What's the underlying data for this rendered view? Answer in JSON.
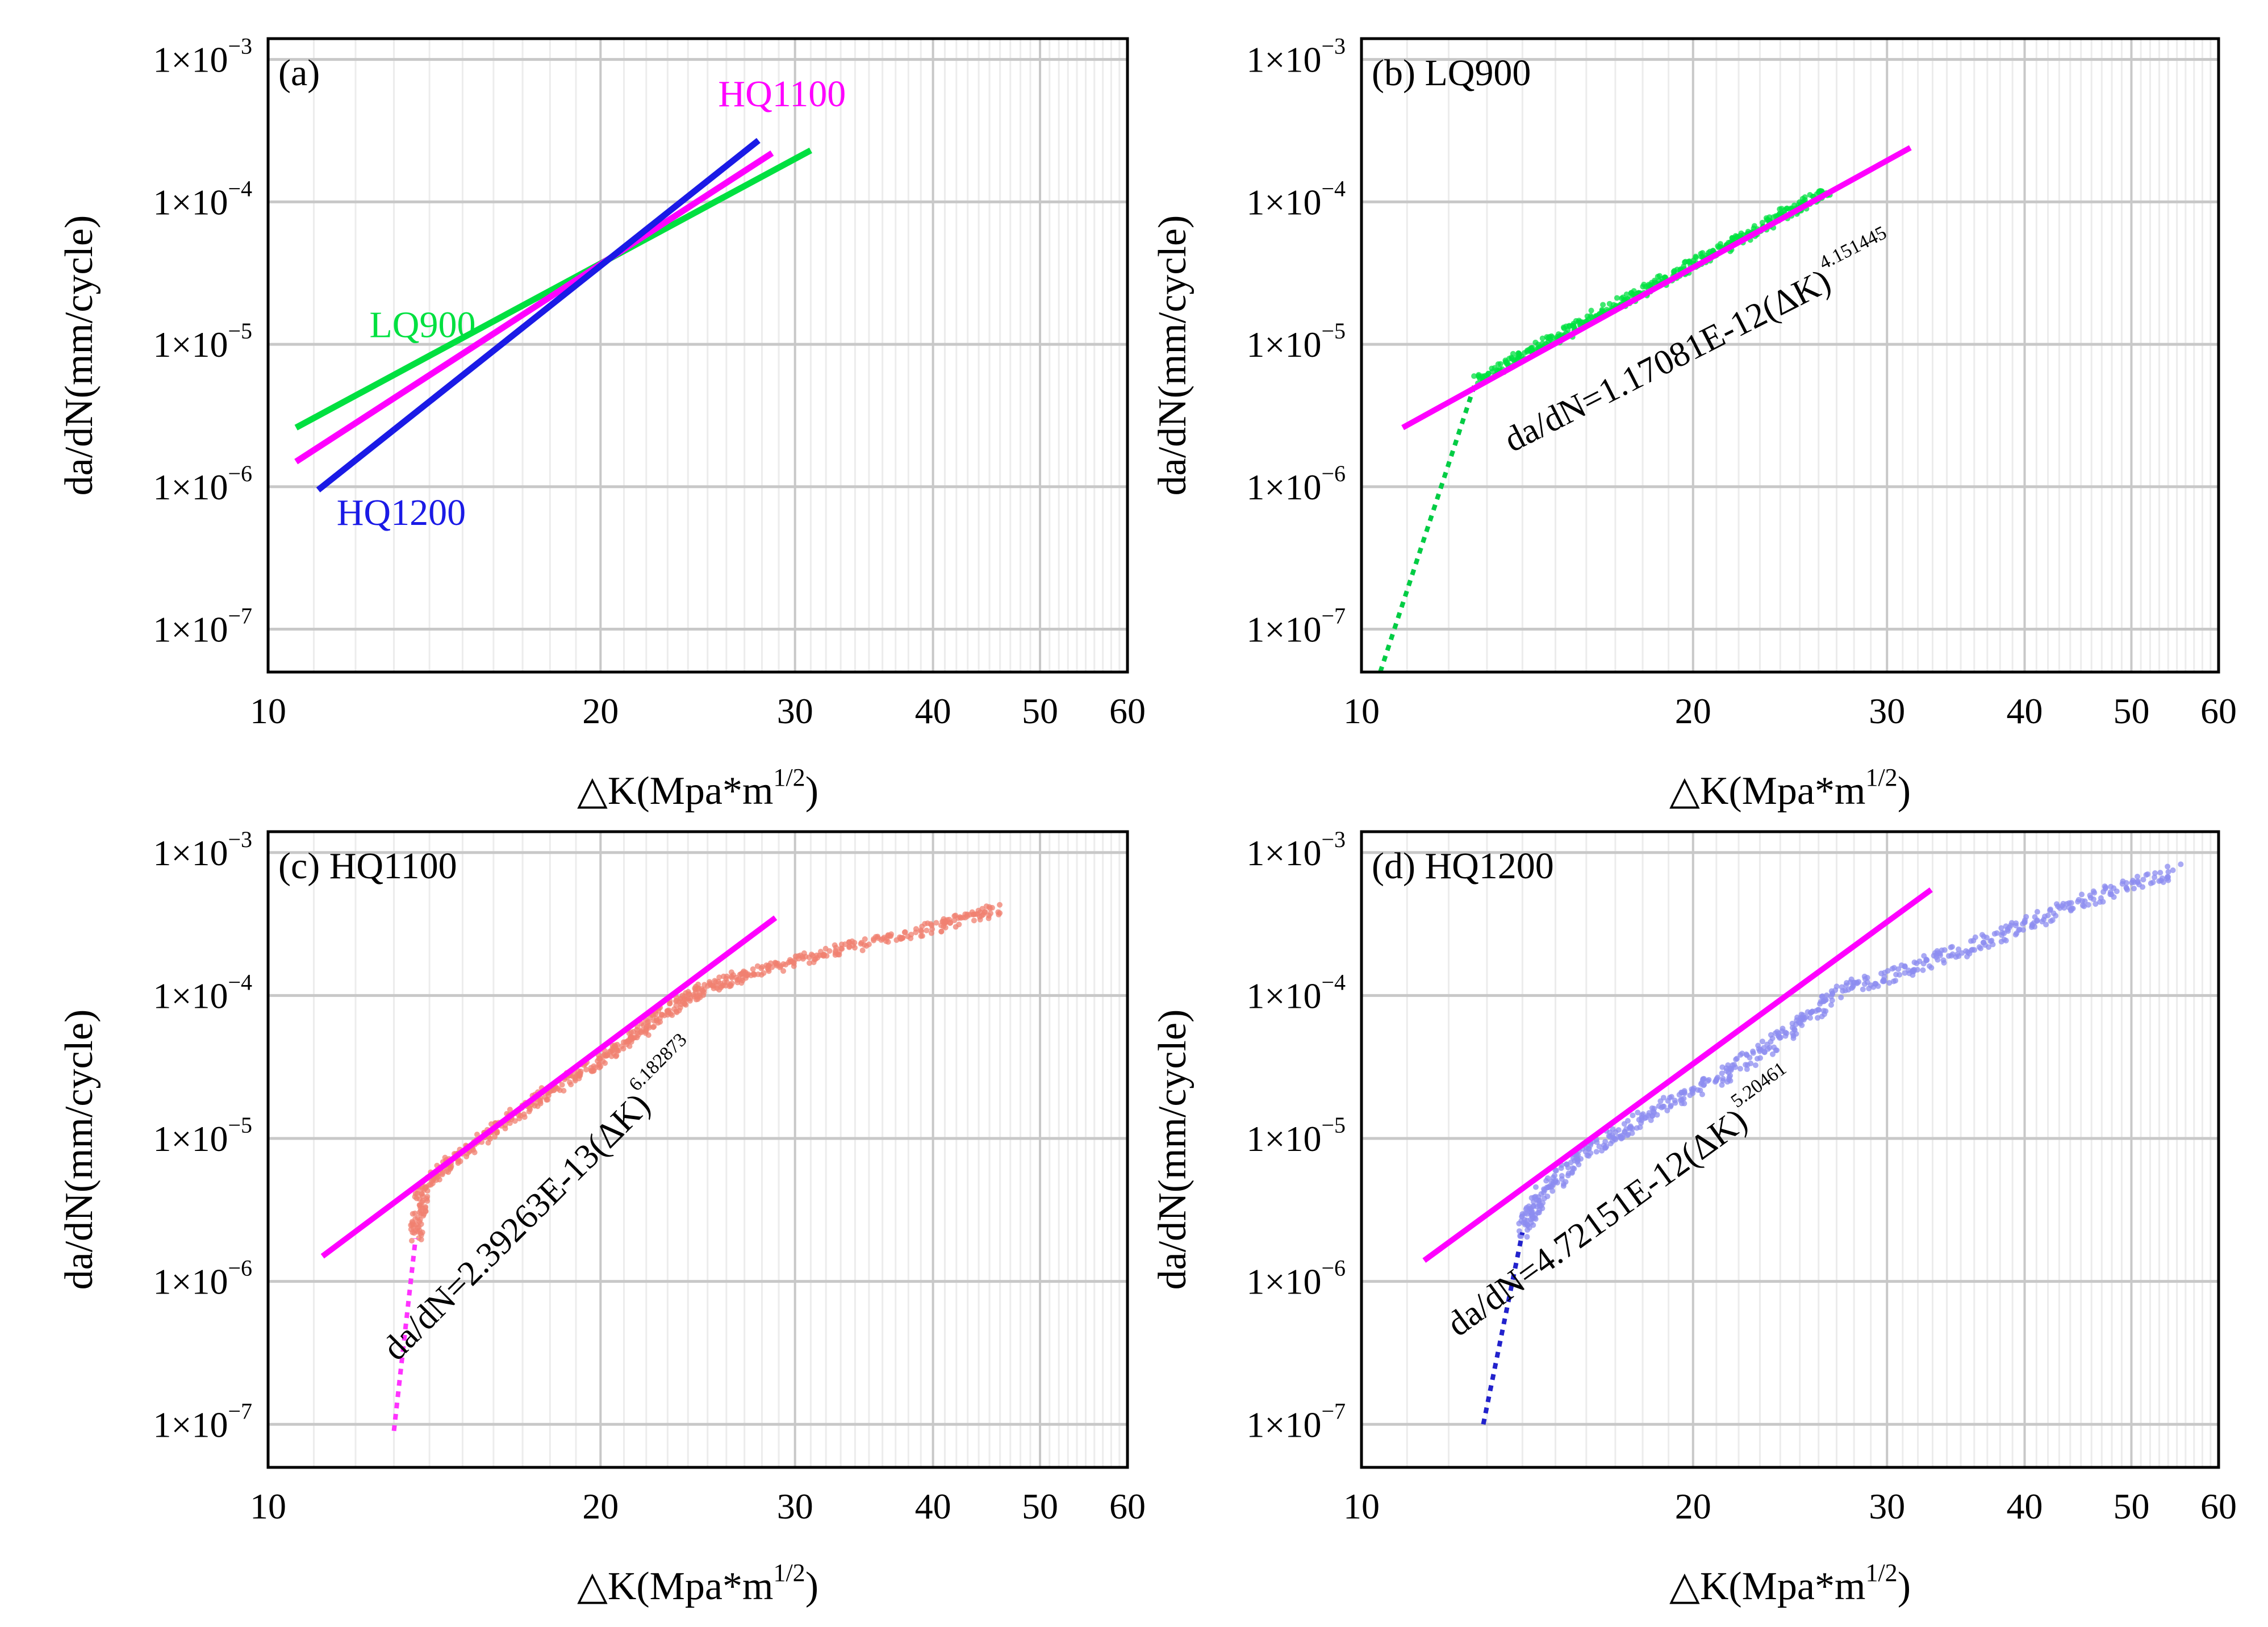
{
  "colors": {
    "green": "#00e040",
    "magenta": "#ff00ff",
    "blue": "#1a1ae6",
    "salmon": "#f08070",
    "lightblue": "#8c8cf0",
    "dottedgreen": "#00cc44",
    "dottedmagenta": "#ff33ff",
    "dottedblue": "#2222cc",
    "grid_major": "#c8c8c8",
    "grid_minor": "#ececec",
    "frame": "#000000"
  },
  "chart_data": [
    {
      "type": "line",
      "panel_label": "(a)",
      "xlabel": "△K(Mpa*m¹′²)",
      "xlabel_base": "△K(Mpa*m",
      "xlabel_sup": "1/2",
      "xlabel_close": ")",
      "ylabel": "da/dN(mm/cycle)",
      "xscale": "log",
      "yscale": "log",
      "xlim": [
        10,
        60
      ],
      "ylim": [
        5e-08,
        0.0014
      ],
      "xticks": [
        10,
        20,
        30,
        40,
        50,
        60
      ],
      "yticks": [
        {
          "value": 0.001,
          "base": "1×10",
          "exp": "−3"
        },
        {
          "value": 0.0001,
          "base": "1×10",
          "exp": "−4"
        },
        {
          "value": 1e-05,
          "base": "1×10",
          "exp": "−5"
        },
        {
          "value": 1e-06,
          "base": "1×10",
          "exp": "−6"
        },
        {
          "value": 1e-07,
          "base": "1×10",
          "exp": "−7"
        }
      ],
      "series": [
        {
          "name": "LQ900",
          "color_key": "green",
          "style": "solid",
          "x": [
            10.6,
            31.0
          ],
          "y": [
            2.6e-06,
            0.00023
          ]
        },
        {
          "name": "HQ1100",
          "color_key": "magenta",
          "style": "solid",
          "x": [
            10.6,
            28.6
          ],
          "y": [
            1.5e-06,
            0.00022
          ]
        },
        {
          "name": "HQ1200",
          "color_key": "blue",
          "style": "solid",
          "x": [
            11.1,
            27.8
          ],
          "y": [
            9.5e-07,
            0.00027
          ]
        }
      ],
      "annotations": [
        {
          "text": "LQ900",
          "color_key": "green",
          "x": 13.8,
          "y": 1.12e-05
        },
        {
          "text": "HQ1100",
          "color_key": "magenta",
          "x": 29.2,
          "y": 0.00047
        },
        {
          "text": "HQ1200",
          "color_key": "blue",
          "x": 13.2,
          "y": 5.4e-07
        }
      ]
    },
    {
      "type": "scatter",
      "panel_label": "(b) LQ900",
      "xlabel": "△K(Mpa*m¹′²)",
      "xlabel_base": "△K(Mpa*m",
      "xlabel_sup": "1/2",
      "xlabel_close": ")",
      "ylabel": "da/dN(mm/cycle)",
      "xscale": "log",
      "yscale": "log",
      "xlim": [
        10,
        60
      ],
      "ylim": [
        5e-08,
        0.0014
      ],
      "xticks": [
        10,
        20,
        30,
        40,
        50,
        60
      ],
      "yticks": [
        {
          "value": 0.001,
          "base": "1×10",
          "exp": "−3"
        },
        {
          "value": 0.0001,
          "base": "1×10",
          "exp": "−4"
        },
        {
          "value": 1e-05,
          "base": "1×10",
          "exp": "−5"
        },
        {
          "value": 1e-06,
          "base": "1×10",
          "exp": "−6"
        },
        {
          "value": 1e-07,
          "base": "1×10",
          "exp": "−7"
        }
      ],
      "fit": {
        "color_key": "magenta",
        "x": [
          10.9,
          31.5
        ],
        "y": [
          2.6e-06,
          0.00024
        ]
      },
      "threshold": {
        "color_key": "dottedgreen",
        "x": [
          10.4,
          12.7
        ],
        "y": [
          5e-08,
          5.5e-06
        ]
      },
      "scatter": {
        "color_key": "green",
        "x_range": [
          12.7,
          26.5
        ],
        "y_start": 5.5e-06,
        "y_end": 0.00012,
        "scatter_spread": 0.035
      },
      "equation": {
        "main": "da/dN=1.17081E-12(ΔK)",
        "exp": "4.151445",
        "x": 20.5,
        "y": 8.5e-06,
        "angle": -27
      }
    },
    {
      "type": "scatter",
      "panel_label": "(c) HQ1100",
      "xlabel": "△K(Mpa*m¹′²)",
      "xlabel_base": "△K(Mpa*m",
      "xlabel_sup": "1/2",
      "xlabel_close": ")",
      "ylabel": "da/dN(mm/cycle)",
      "xscale": "log",
      "yscale": "log",
      "xlim": [
        10,
        60
      ],
      "ylim": [
        5e-08,
        0.0014
      ],
      "xticks": [
        10,
        20,
        30,
        40,
        50,
        60
      ],
      "yticks": [
        {
          "value": 0.001,
          "base": "1×10",
          "exp": "−3"
        },
        {
          "value": 0.0001,
          "base": "1×10",
          "exp": "−4"
        },
        {
          "value": 1e-05,
          "base": "1×10",
          "exp": "−5"
        },
        {
          "value": 1e-06,
          "base": "1×10",
          "exp": "−6"
        },
        {
          "value": 1e-07,
          "base": "1×10",
          "exp": "−7"
        }
      ],
      "fit": {
        "color_key": "magenta",
        "x": [
          11.2,
          28.8
        ],
        "y": [
          1.5e-06,
          0.00035
        ]
      },
      "threshold": {
        "color_key": "dottedmagenta",
        "x": [
          13.0,
          13.6
        ],
        "y": [
          9e-08,
          2e-06
        ]
      },
      "scatter": {
        "color_key": "salmon",
        "points": [
          [
            13.6,
            2e-06
          ],
          [
            13.8,
            4.5e-06
          ],
          [
            15,
            8e-06
          ],
          [
            17,
            1.6e-05
          ],
          [
            19,
            2.8e-05
          ],
          [
            21,
            4.6e-05
          ],
          [
            23,
            8e-05
          ],
          [
            25,
            0.000115
          ],
          [
            28,
            0.00015
          ],
          [
            33,
            0.00021
          ],
          [
            40,
            0.0003
          ],
          [
            46,
            0.0004
          ]
        ],
        "scatter_spread": 0.04
      },
      "equation": {
        "main": "da/dN=2.39263E-13(ΔK)",
        "exp": "6.182873",
        "x": 18.0,
        "y": 3.2e-06,
        "angle": -45
      }
    },
    {
      "type": "scatter",
      "panel_label": "(d) HQ1200",
      "xlabel": "△K(Mpa*m¹′²)",
      "xlabel_base": "△K(Mpa*m",
      "xlabel_sup": "1/2",
      "xlabel_close": ")",
      "ylabel": "da/dN(mm/cycle)",
      "xscale": "log",
      "yscale": "log",
      "xlim": [
        10,
        60
      ],
      "ylim": [
        5e-08,
        0.0014
      ],
      "xticks": [
        10,
        20,
        30,
        40,
        50,
        60
      ],
      "yticks": [
        {
          "value": 0.001,
          "base": "1×10",
          "exp": "−3"
        },
        {
          "value": 0.0001,
          "base": "1×10",
          "exp": "−4"
        },
        {
          "value": 1e-05,
          "base": "1×10",
          "exp": "−5"
        },
        {
          "value": 1e-06,
          "base": "1×10",
          "exp": "−6"
        },
        {
          "value": 1e-07,
          "base": "1×10",
          "exp": "−7"
        }
      ],
      "fit": {
        "color_key": "magenta",
        "x": [
          11.4,
          32.9
        ],
        "y": [
          1.4e-06,
          0.00055
        ]
      },
      "threshold": {
        "color_key": "dottedblue",
        "x": [
          12.9,
          14.0
        ],
        "y": [
          1e-07,
          2.2e-06
        ]
      },
      "scatter": {
        "color_key": "lightblue",
        "points": [
          [
            14.0,
            2.2e-06
          ],
          [
            14.5,
            4e-06
          ],
          [
            16,
            8e-06
          ],
          [
            18,
            1.4e-05
          ],
          [
            21,
            2.6e-05
          ],
          [
            24,
            5e-05
          ],
          [
            27,
            0.000105
          ],
          [
            32,
            0.00016
          ],
          [
            38,
            0.00026
          ],
          [
            45,
            0.00045
          ],
          [
            55,
            0.00075
          ]
        ],
        "scatter_spread": 0.05
      },
      "equation": {
        "main": "da/dN=4.72151E-12(ΔK)",
        "exp": "5.20461",
        "x": 17.5,
        "y": 3e-06,
        "angle": -36
      }
    }
  ]
}
